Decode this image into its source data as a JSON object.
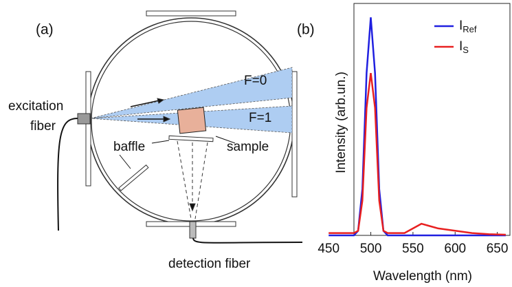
{
  "panel_a": {
    "label": "(a)",
    "excitation": [
      "excitation",
      "fiber"
    ],
    "beam_f0": "F=0",
    "beam_f1": "F=1",
    "baffle": "baffle",
    "sample": "sample",
    "detection": "detection fiber"
  },
  "chart_data": {
    "type": "line",
    "panel_label": "(b)",
    "x_label": "Wavelength (nm)",
    "y_label": "Intensity (arb.un.)",
    "xlim": [
      480,
      665
    ],
    "xticks": [
      450,
      500,
      550,
      600,
      650
    ],
    "ylim": [
      0,
      1
    ],
    "x": [
      450,
      470,
      480,
      485,
      490,
      495,
      500,
      505,
      510,
      515,
      520,
      540,
      550,
      560,
      570,
      580,
      600,
      620,
      640,
      660
    ],
    "series": [
      {
        "name": "IRef",
        "color": "#1f1fe0",
        "values": [
          0,
          0,
          0,
          0.02,
          0.2,
          0.7,
          0.94,
          0.7,
          0.2,
          0.02,
          0,
          0,
          0,
          0,
          0,
          0,
          0,
          0,
          0,
          0
        ]
      },
      {
        "name": "IS",
        "color": "#e82020",
        "values": [
          0.01,
          0.01,
          0.01,
          0.02,
          0.15,
          0.55,
          0.7,
          0.55,
          0.15,
          0.02,
          0.01,
          0.01,
          0.03,
          0.05,
          0.04,
          0.03,
          0.02,
          0.01,
          0.005,
          0.003
        ]
      }
    ],
    "legend": "upper right"
  }
}
